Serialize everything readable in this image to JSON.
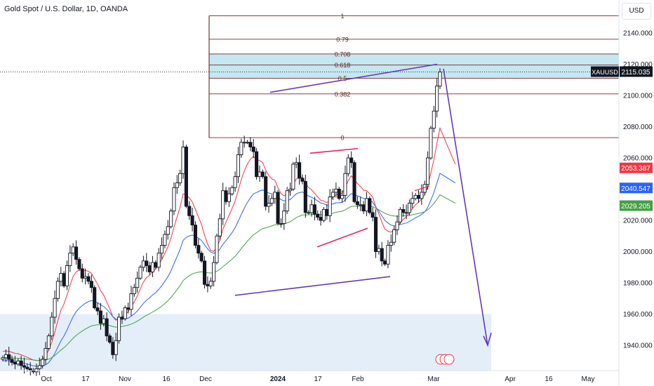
{
  "header": {
    "title": "Gold Spot / U.S. Dollar, 1D, OANDA",
    "currency": "USD"
  },
  "chart_data": {
    "type": "candlestick",
    "symbol": "XAUUSD",
    "ylim": [
      1922,
      2156
    ],
    "y_ticks": [
      1940,
      1960,
      1980,
      2000,
      2020,
      2040,
      2060,
      2080,
      2100,
      2120,
      2140
    ],
    "y_tick_labels": [
      "1940.000",
      "1960.000",
      "1980.000",
      "2000.000",
      "2020.000",
      "2040.000",
      "2060.000",
      "2080.000",
      "2100.000",
      "2120.000",
      "2140.000"
    ],
    "x_tick_labels": [
      "Oct",
      "17",
      "Nov",
      "16",
      "Dec",
      "2024",
      "17",
      "Feb",
      "Mar",
      "Apr",
      "16",
      "May"
    ],
    "price_badges": [
      {
        "label": "XAUUSD",
        "value": "2115.035",
        "price": 2115.035,
        "color": "#131722"
      },
      {
        "label": "",
        "value": "2053.387",
        "price": 2053.387,
        "color": "#f23645"
      },
      {
        "label": "",
        "value": "2040.547",
        "price": 2040.547,
        "color": "#2962ff"
      },
      {
        "label": "",
        "value": "2029.205",
        "price": 2029.205,
        "color": "#43a047"
      }
    ],
    "fib_levels": [
      {
        "label": "1",
        "price": 2151
      },
      {
        "label": "0.79",
        "price": 2136
      },
      {
        "label": "0.708",
        "price": 2126.6
      },
      {
        "label": "0.618",
        "price": 2119.5
      },
      {
        "label": "0.5",
        "price": 2111
      },
      {
        "label": "0.382",
        "price": 2101
      },
      {
        "label": "0",
        "price": 2073
      }
    ],
    "closes": [
      1932,
      1934,
      1931,
      1929,
      1928,
      1930,
      1927,
      1926,
      1925,
      1924,
      1923,
      1925,
      1927,
      1931,
      1938,
      1946,
      1958,
      1970,
      1981,
      1986,
      1978,
      1991,
      1999,
      2003,
      1995,
      1989,
      1983,
      1984,
      1981,
      1977,
      1964,
      1962,
      1954,
      1957,
      1946,
      1942,
      1934,
      1943,
      1958,
      1957,
      1964,
      1963,
      1973,
      1977,
      1983,
      1990,
      1994,
      1991,
      1987,
      1993,
      1990,
      1999,
      2004,
      2011,
      2016,
      2026,
      2041,
      2044,
      2050,
      2067,
      2029,
      2023,
      2017,
      2004,
      1999,
      1994,
      1979,
      1978,
      1981,
      1993,
      2010,
      2021,
      2039,
      2032,
      2037,
      2041,
      2048,
      2062,
      2070,
      2070,
      2070,
      2067,
      2064,
      2048,
      2051,
      2048,
      2029,
      2031,
      2034,
      2038,
      2018,
      2018,
      2026,
      2039,
      2040,
      2056,
      2057,
      2047,
      2045,
      2025,
      2025,
      2030,
      2024,
      2022,
      2020,
      2027,
      2023,
      2035,
      2038,
      2040,
      2034,
      2036,
      2050,
      2060,
      2057,
      2032,
      2030,
      2030,
      2026,
      2034,
      2025,
      2022,
      2000,
      2002,
      1994,
      1992,
      2004,
      2006,
      2014,
      2019,
      2027,
      2025,
      2025,
      2031,
      2034,
      2036,
      2034,
      2038,
      2043,
      2060,
      2079,
      2090,
      2106,
      2115
    ],
    "ema_fast_color": "#f23645",
    "ema_mid_color": "#2962ff",
    "ema_slow_color": "#43a047",
    "drawing_color": "#673ab7",
    "channel_color": "#e91e63"
  }
}
